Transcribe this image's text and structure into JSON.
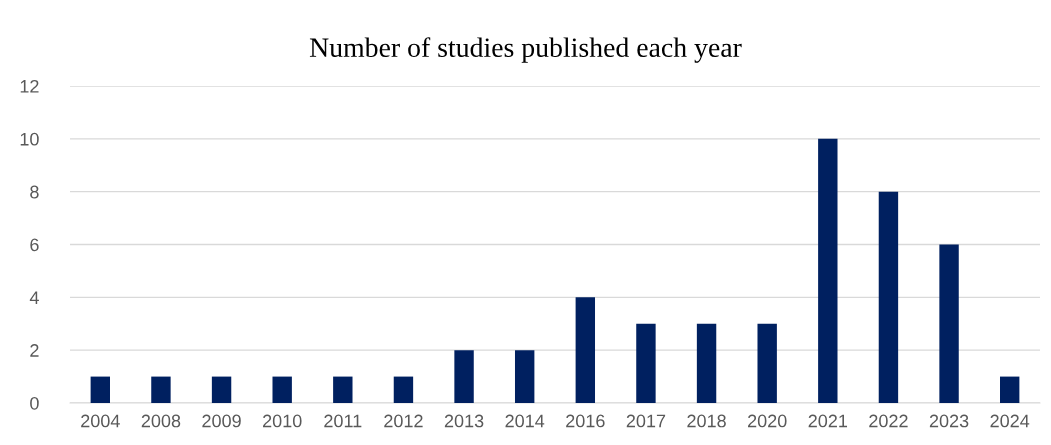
{
  "chart_data": {
    "type": "bar",
    "title": "Number of studies published each year",
    "categories": [
      "2004",
      "2008",
      "2009",
      "2010",
      "2011",
      "2012",
      "2013",
      "2014",
      "2016",
      "2017",
      "2018",
      "2020",
      "2021",
      "2022",
      "2023",
      "2024"
    ],
    "values": [
      1,
      1,
      1,
      1,
      1,
      1,
      2,
      2,
      4,
      3,
      3,
      3,
      10,
      8,
      6,
      1
    ],
    "color": "#002060",
    "ylim": [
      0,
      12
    ],
    "yticks": [
      0,
      2,
      4,
      6,
      8,
      10,
      12
    ],
    "grid": "y"
  }
}
